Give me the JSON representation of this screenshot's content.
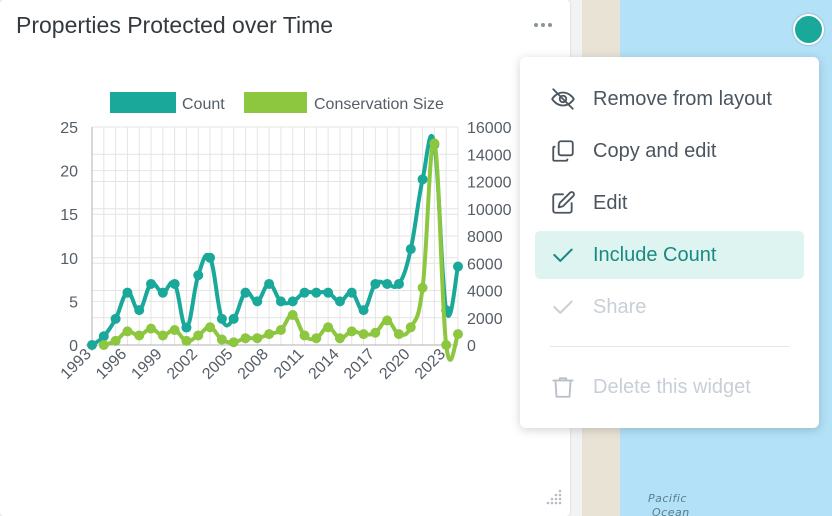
{
  "widget": {
    "title": "Properties Protected over Time"
  },
  "map": {
    "label_line1": "Pacific",
    "label_line2": "Ocean"
  },
  "menu": {
    "items": [
      {
        "label": "Remove from layout",
        "icon": "eye-off-icon",
        "state": "normal"
      },
      {
        "label": "Copy and edit",
        "icon": "copy-icon",
        "state": "normal"
      },
      {
        "label": "Edit",
        "icon": "edit-icon",
        "state": "normal"
      },
      {
        "label": "Include Count",
        "icon": "check-icon",
        "state": "active"
      },
      {
        "label": "Share",
        "icon": "check-icon",
        "state": "disabled"
      },
      {
        "label": "Delete this widget",
        "icon": "trash-icon",
        "state": "disabled"
      }
    ]
  },
  "colors": {
    "count": "#1aa89a",
    "conservation_size": "#8dc63f"
  },
  "chart_data": {
    "type": "line",
    "title": "",
    "xlabel": "",
    "ylabel_left": "",
    "ylabel_right": "",
    "legend_placement": "top",
    "grid": true,
    "x": [
      1993,
      1994,
      1995,
      1996,
      1997,
      1998,
      1999,
      2000,
      2001,
      2002,
      2003,
      2004,
      2005,
      2006,
      2007,
      2008,
      2009,
      2010,
      2011,
      2012,
      2013,
      2014,
      2015,
      2016,
      2017,
      2018,
      2019,
      2020,
      2021,
      2022,
      2023,
      2024
    ],
    "x_tick_labels": [
      "1993",
      "1996",
      "1999",
      "2002",
      "2005",
      "2008",
      "2011",
      "2014",
      "2017",
      "2020",
      "2023"
    ],
    "y_left": {
      "min": 0,
      "max": 25,
      "ticks": [
        "0",
        "5",
        "10",
        "15",
        "20",
        "25"
      ]
    },
    "y_right": {
      "min": 0,
      "max": 16000,
      "ticks": [
        "0",
        "2000",
        "4000",
        "6000",
        "8000",
        "10000",
        "12000",
        "14000",
        "16000"
      ]
    },
    "series": [
      {
        "name": "Count",
        "axis": "left",
        "values": [
          0,
          1,
          3,
          6,
          4,
          7,
          6,
          7,
          2,
          8,
          10,
          3,
          3,
          6,
          5,
          7,
          5,
          5,
          6,
          6,
          6,
          5,
          6,
          4,
          7,
          7,
          7,
          11,
          19,
          23,
          4,
          9
        ]
      },
      {
        "name": "Conservation Size",
        "axis": "right",
        "values": [
          null,
          0,
          300,
          1000,
          700,
          1200,
          700,
          1100,
          300,
          700,
          1300,
          400,
          200,
          500,
          500,
          800,
          1100,
          2200,
          700,
          500,
          1300,
          500,
          1000,
          800,
          900,
          1800,
          800,
          1300,
          4200,
          14800,
          0,
          800
        ]
      }
    ]
  }
}
